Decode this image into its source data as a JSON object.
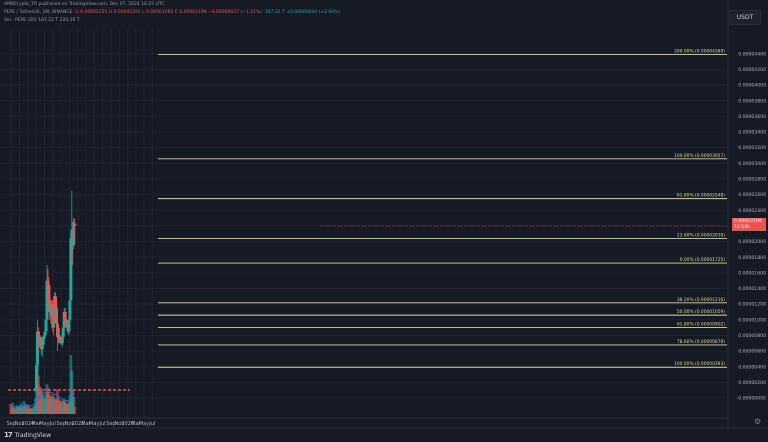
{
  "header": {
    "publisher": "AMBCrypto_TR published on TradingView.com, Dec 07, 2024 10:25 UTC",
    "symbol": "PEPE / TetherUS, 1M, BINANCE",
    "ohlc": "O 0.00002225 H 0.00002291 L 0.00001985 C 0.00002199 −0.00000027 (−1.21%)",
    "ohlc_extra": "187.22 T  +0.00000044 (+2.04%)",
    "volume": "Vol · PEPE (20)  187.22 T  220.16 T"
  },
  "currency_button": "USDT",
  "last_price": {
    "value": "0.00002199",
    "sub": "10:14h"
  },
  "footer": {
    "brand": "TradingView"
  },
  "icons": {
    "brand_logo": "tradingview-logo-icon",
    "settings": "gear-icon"
  },
  "colors": {
    "background": "#161a25",
    "up": "#26a69a",
    "down": "#ef5350",
    "fib": "#d9d99a",
    "volume_ma": "#2962ff"
  },
  "chart_data": {
    "type": "candlestick",
    "timeframe": "1M",
    "y_axis": {
      "min": 0.0,
      "max": 4.42e-05,
      "tick_labels": [
        "-0.00000000",
        "0.00000200",
        "0.00000400",
        "0.00000600",
        "0.00000800",
        "0.00001000",
        "0.00001200",
        "0.00001400",
        "0.00001600",
        "0.00001800",
        "0.00002000",
        "0.00002200",
        "0.00002400",
        "0.00002600",
        "0.00002800",
        "0.00003000",
        "0.00003200",
        "0.00003400",
        "0.00003600",
        "0.00003800",
        "0.00004000",
        "0.00004200",
        "0.00004400"
      ]
    },
    "x_axis": {
      "tick_labels": [
        {
          "label": "Sep",
          "month": "2023-09"
        },
        {
          "label": "Nov",
          "month": "2023-11"
        },
        {
          "label": "2024",
          "month": "2024-01"
        },
        {
          "label": "Mar",
          "month": "2024-03"
        },
        {
          "label": "May",
          "month": "2024-05"
        },
        {
          "label": "Jul",
          "month": "2024-07"
        },
        {
          "label": "Sep",
          "month": "2024-09"
        },
        {
          "label": "Nov",
          "month": "2024-11"
        },
        {
          "label": "2025",
          "month": "2025-01"
        },
        {
          "label": "Mar",
          "month": "2025-03"
        },
        {
          "label": "May",
          "month": "2025-05"
        },
        {
          "label": "Jul",
          "month": "2025-07"
        },
        {
          "label": "Sep",
          "month": "2025-09"
        },
        {
          "label": "Nov",
          "month": "2025-11"
        },
        {
          "label": "2026",
          "month": "2026-01"
        },
        {
          "label": "Mar",
          "month": "2026-03"
        },
        {
          "label": "May",
          "month": "2026-05"
        },
        {
          "label": "Jul",
          "month": "2026-07"
        }
      ]
    },
    "fib_levels": [
      {
        "label": "200.00% (0.00004389)",
        "value": 4.389e-05
      },
      {
        "label": "100.00% (0.00003057)",
        "value": 3.057e-05
      },
      {
        "label": "61.80% (0.00002548)",
        "value": 2.548e-05
      },
      {
        "label": "23.60% (0.00002039)",
        "value": 2.039e-05
      },
      {
        "label": "0.00% (0.00001725)",
        "value": 1.725e-05
      },
      {
        "label": "38.20% (0.00001216)",
        "value": 1.216e-05
      },
      {
        "label": "50.00% (0.00001059)",
        "value": 1.059e-05
      },
      {
        "label": "61.80% (0.00000902)",
        "value": 9.02e-06
      },
      {
        "label": "78.60% (0.00000678)",
        "value": 6.78e-06
      },
      {
        "label": "100.00% (0.00000393)",
        "value": 3.93e-06
      }
    ],
    "candles": [
      [
        "2024-02-26",
        9e-07,
        1.4e-06,
        8.5e-07,
        1.3e-06
      ],
      [
        "2024-03-04",
        1.3e-06,
        4.5e-06,
        1.2e-06,
        4.2e-06
      ],
      [
        "2024-03-11",
        4.2e-06,
        1e-05,
        4e-06,
        8.5e-06
      ],
      [
        "2024-03-18",
        8.5e-06,
        9e-06,
        6.5e-06,
        7e-06
      ],
      [
        "2024-03-25",
        7e-06,
        8.5e-06,
        6.5e-06,
        7.8e-06
      ],
      [
        "2024-04-01",
        7.8e-06,
        8e-06,
        6.5e-06,
        7e-06
      ],
      [
        "2024-04-08",
        7e-06,
        7.5e-06,
        5.5e-06,
        6.2e-06
      ],
      [
        "2024-04-15",
        6.2e-06,
        7.2e-06,
        5.2e-06,
        6.8e-06
      ],
      [
        "2024-04-22",
        6.8e-06,
        8e-06,
        6.5e-06,
        7.8e-06
      ],
      [
        "2024-04-29",
        7.8e-06,
        8.2e-06,
        7.2e-06,
        8e-06
      ],
      [
        "2024-05-06",
        8e-06,
        9.5e-06,
        7.5e-06,
        8.5e-06
      ],
      [
        "2024-05-13",
        8.5e-06,
        1.05e-05,
        8e-06,
        1e-05
      ],
      [
        "2024-05-20",
        1e-05,
        1.7e-05,
        9.5e-06,
        1.5e-05
      ],
      [
        "2024-05-27",
        1.5e-05,
        1.65e-05,
        1.25e-05,
        1.45e-05
      ],
      [
        "2024-06-03",
        1.45e-05,
        1.55e-05,
        1.15e-05,
        1.25e-05
      ],
      [
        "2024-06-10",
        1.25e-05,
        1.35e-05,
        1e-05,
        1.1e-05
      ],
      [
        "2024-06-17",
        1.1e-05,
        1.2e-05,
        9.5e-06,
        1.05e-05
      ],
      [
        "2024-06-24",
        1.05e-05,
        1.25e-05,
        9.5e-06,
        1.2e-05
      ],
      [
        "2024-07-01",
        1.2e-05,
        1.25e-05,
        8.5e-06,
        9e-06
      ],
      [
        "2024-07-08",
        9e-06,
        1e-05,
        8e-06,
        9.5e-06
      ],
      [
        "2024-07-15",
        9.5e-06,
        1.35e-05,
        9e-06,
        1.3e-05
      ],
      [
        "2024-07-22",
        1.3e-05,
        1.35e-05,
        1.1e-05,
        1.15e-05
      ],
      [
        "2024-07-29",
        1.15e-05,
        1.2e-05,
        9e-06,
        9.5e-06
      ],
      [
        "2024-08-05",
        9.5e-06,
        1e-05,
        6e-06,
        7.8e-06
      ],
      [
        "2024-08-12",
        7.8e-06,
        8.5e-06,
        7e-06,
        8e-06
      ],
      [
        "2024-08-19",
        8e-06,
        9e-06,
        7e-06,
        7.5e-06
      ],
      [
        "2024-08-26",
        7.5e-06,
        8e-06,
        6.8e-06,
        7.2e-06
      ],
      [
        "2024-09-02",
        7.2e-06,
        7.8e-06,
        6.8e-06,
        7e-06
      ],
      [
        "2024-09-09",
        7e-06,
        8e-06,
        6.5e-06,
        7.8e-06
      ],
      [
        "2024-09-16",
        7.8e-06,
        9.5e-06,
        7.5e-06,
        9e-06
      ],
      [
        "2024-09-23",
        9e-06,
        1.15e-05,
        8.5e-06,
        1.1e-05
      ],
      [
        "2024-09-30",
        1.1e-05,
        1.15e-05,
        9.5e-06,
        1e-05
      ],
      [
        "2024-10-07",
        1e-05,
        1.05e-05,
        9e-06,
        9.5e-06
      ],
      [
        "2024-10-14",
        9.5e-06,
        1e-05,
        8.5e-06,
        9e-06
      ],
      [
        "2024-10-21",
        9e-06,
        9.8e-06,
        8.2e-06,
        8.5e-06
      ],
      [
        "2024-10-28",
        8.5e-06,
        1.05e-05,
        8e-06,
        1e-05
      ],
      [
        "2024-11-04",
        1e-05,
        1.25e-05,
        9.5e-06,
        1.25e-05
      ],
      [
        "2024-11-11",
        1.25e-05,
        2.1e-05,
        1.2e-05,
        2.05e-05
      ],
      [
        "2024-11-18",
        2.05e-05,
        2.65e-05,
        1.85e-05,
        2.15e-05
      ],
      [
        "2024-11-25",
        2.15e-05,
        2.25e-05,
        1.7e-05,
        1.95e-05
      ],
      [
        "2024-12-02",
        1.95e-05,
        2.3e-05,
        1.9e-05,
        2.25e-05
      ],
      [
        "2024-12-09",
        2.225e-05,
        2.291e-05,
        1.985e-05,
        2.199e-05
      ]
    ],
    "volume_series": [
      [
        "2023-08-28",
        0.16,
        0
      ],
      [
        "2023-09-04",
        0.12,
        0
      ],
      [
        "2023-09-11",
        0.18,
        1
      ],
      [
        "2023-09-18",
        0.1,
        0
      ],
      [
        "2023-09-25",
        0.09,
        0
      ],
      [
        "2023-10-02",
        0.11,
        1
      ],
      [
        "2023-10-09",
        0.08,
        0
      ],
      [
        "2023-10-16",
        0.14,
        1
      ],
      [
        "2023-10-23",
        0.12,
        1
      ],
      [
        "2023-10-30",
        0.1,
        0
      ],
      [
        "2023-11-06",
        0.13,
        1
      ],
      [
        "2023-11-13",
        0.17,
        1
      ],
      [
        "2023-11-20",
        0.11,
        0
      ],
      [
        "2023-11-27",
        0.12,
        1
      ],
      [
        "2023-12-04",
        0.21,
        1
      ],
      [
        "2023-12-11",
        0.14,
        0
      ],
      [
        "2023-12-18",
        0.16,
        1
      ],
      [
        "2023-12-25",
        0.11,
        0
      ],
      [
        "2024-01-01",
        0.15,
        1
      ],
      [
        "2024-01-08",
        0.12,
        0
      ],
      [
        "2024-01-15",
        0.09,
        0
      ],
      [
        "2024-01-22",
        0.1,
        0
      ],
      [
        "2024-01-29",
        0.08,
        1
      ],
      [
        "2024-02-05",
        0.09,
        0
      ],
      [
        "2024-02-12",
        0.11,
        1
      ],
      [
        "2024-02-19",
        0.13,
        1
      ],
      [
        "2024-02-26",
        0.25,
        1
      ],
      [
        "2024-03-04",
        0.55,
        1
      ],
      [
        "2024-03-11",
        0.9,
        1
      ],
      [
        "2024-03-18",
        0.62,
        0
      ],
      [
        "2024-03-25",
        0.45,
        0
      ],
      [
        "2024-04-01",
        0.35,
        0
      ],
      [
        "2024-04-08",
        0.42,
        0
      ],
      [
        "2024-04-15",
        0.38,
        1
      ],
      [
        "2024-04-22",
        0.3,
        1
      ],
      [
        "2024-04-29",
        0.25,
        0
      ],
      [
        "2024-05-06",
        0.24,
        1
      ],
      [
        "2024-05-13",
        0.33,
        1
      ],
      [
        "2024-05-20",
        0.48,
        1
      ],
      [
        "2024-05-27",
        0.42,
        0
      ],
      [
        "2024-06-03",
        0.36,
        0
      ],
      [
        "2024-06-10",
        0.3,
        0
      ],
      [
        "2024-06-17",
        0.28,
        0
      ],
      [
        "2024-06-24",
        0.26,
        1
      ],
      [
        "2024-07-01",
        0.32,
        0
      ],
      [
        "2024-07-08",
        0.28,
        1
      ],
      [
        "2024-07-15",
        0.25,
        1
      ],
      [
        "2024-07-22",
        0.22,
        0
      ],
      [
        "2024-07-29",
        0.24,
        0
      ],
      [
        "2024-08-05",
        0.4,
        0
      ],
      [
        "2024-08-12",
        0.26,
        1
      ],
      [
        "2024-08-19",
        0.22,
        0
      ],
      [
        "2024-08-26",
        0.2,
        0
      ],
      [
        "2024-09-02",
        0.18,
        0
      ],
      [
        "2024-09-09",
        0.22,
        1
      ],
      [
        "2024-09-16",
        0.2,
        1
      ],
      [
        "2024-09-23",
        0.25,
        1
      ],
      [
        "2024-09-30",
        0.22,
        0
      ],
      [
        "2024-10-07",
        0.18,
        0
      ],
      [
        "2024-10-14",
        0.16,
        0
      ],
      [
        "2024-10-21",
        0.15,
        0
      ],
      [
        "2024-10-28",
        0.2,
        1
      ],
      [
        "2024-11-04",
        0.3,
        1
      ],
      [
        "2024-11-11",
        0.95,
        1
      ],
      [
        "2024-11-18",
        0.7,
        1
      ],
      [
        "2024-11-25",
        0.38,
        0
      ],
      [
        "2024-12-02",
        0.28,
        1
      ],
      [
        "2024-12-09",
        0.12,
        0
      ]
    ],
    "volume_ma": [
      [
        "2023-08-28",
        0.12
      ],
      [
        "2023-10-01",
        0.12
      ],
      [
        "2023-12-01",
        0.13
      ],
      [
        "2024-02-01",
        0.13
      ],
      [
        "2024-03-01",
        0.18
      ],
      [
        "2024-04-01",
        0.3
      ],
      [
        "2024-05-01",
        0.34
      ],
      [
        "2024-06-01",
        0.36
      ],
      [
        "2024-07-01",
        0.34
      ],
      [
        "2024-08-01",
        0.3
      ],
      [
        "2024-09-01",
        0.25
      ],
      [
        "2024-10-01",
        0.21
      ],
      [
        "2024-11-01",
        0.22
      ],
      [
        "2024-12-09",
        0.34
      ]
    ]
  }
}
